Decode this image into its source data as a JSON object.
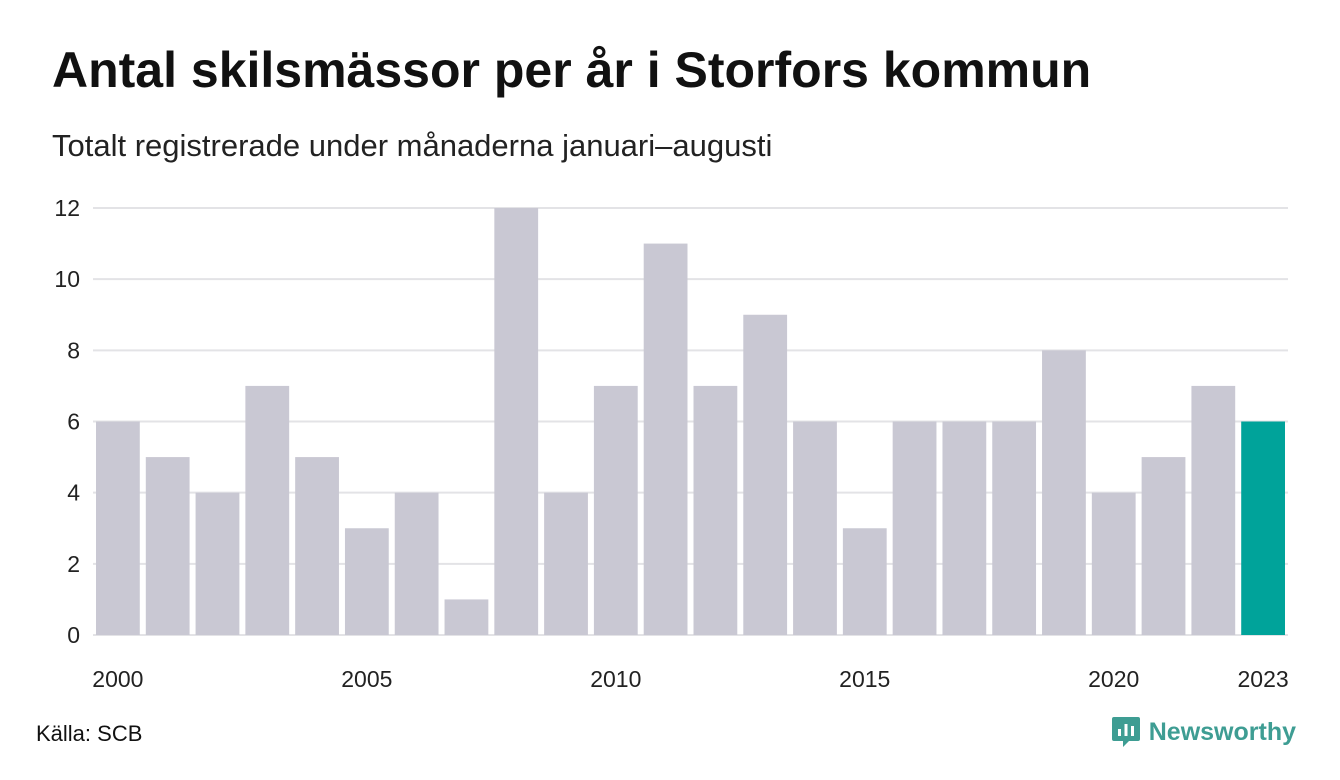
{
  "chart_data": {
    "type": "bar",
    "title": "Antal skilsmässor per år i Storfors kommun",
    "subtitle": "Totalt registrerade under månaderna januari–augusti",
    "categories": [
      "2000",
      "2001",
      "2002",
      "2003",
      "2004",
      "2005",
      "2006",
      "2007",
      "2008",
      "2009",
      "2010",
      "2011",
      "2012",
      "2013",
      "2014",
      "2015",
      "2016",
      "2017",
      "2018",
      "2019",
      "2020",
      "2021",
      "2022",
      "2023"
    ],
    "values": [
      6,
      5,
      4,
      7,
      5,
      3,
      4,
      1,
      12,
      4,
      7,
      11,
      7,
      9,
      6,
      3,
      6,
      6,
      6,
      8,
      4,
      5,
      7,
      6
    ],
    "x_tick_labels": [
      "2000",
      "2005",
      "2010",
      "2015",
      "2020",
      "2023"
    ],
    "y_ticks": [
      0,
      2,
      4,
      6,
      8,
      10,
      12
    ],
    "ylim": [
      0,
      12
    ],
    "xlabel": "",
    "ylabel": "",
    "grid": true,
    "highlight_category": "2023",
    "colors": {
      "bar": "#c9c8d3",
      "highlight": "#00a39a",
      "grid": "#e3e3e6"
    }
  },
  "source": "Källa: SCB",
  "brand": {
    "name": "Newsworthy",
    "icon": "newsworthy-logo-icon",
    "color": "#3e9d93"
  }
}
